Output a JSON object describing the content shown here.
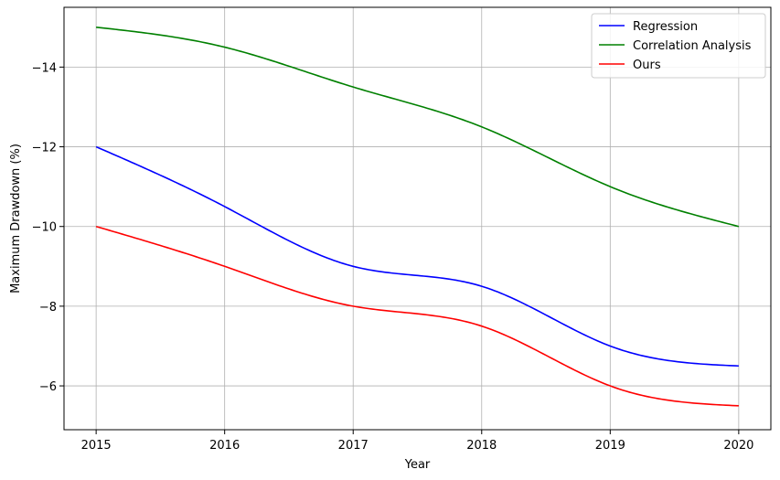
{
  "chart_data": {
    "type": "line",
    "title": "",
    "xlabel": "Year",
    "ylabel": "Maximum Drawdown (%)",
    "x": [
      2015,
      2016,
      2017,
      2018,
      2019,
      2020
    ],
    "x_tick_labels": [
      "2015",
      "2016",
      "2017",
      "2018",
      "2019",
      "2020"
    ],
    "y_ticks": [
      -14,
      -12,
      -10,
      -8,
      -6
    ],
    "y_tick_labels": [
      "−14",
      "−12",
      "−10",
      "−8",
      "−6"
    ],
    "xlim": [
      2014.75,
      2020.25
    ],
    "ylim": [
      -4.9,
      -15.5
    ],
    "y_axis_inverted": true,
    "grid": true,
    "legend_position": "top-right",
    "smoothing": "spline",
    "series": [
      {
        "name": "Regression",
        "color": "#0000ff",
        "values": [
          -12,
          -10.5,
          -9,
          -8.5,
          -7,
          -6.5
        ]
      },
      {
        "name": "Correlation Analysis",
        "color": "#008000",
        "values": [
          -15,
          -14.5,
          -13.5,
          -12.5,
          -11,
          -10
        ]
      },
      {
        "name": "Ours",
        "color": "#ff0000",
        "values": [
          -10,
          -9,
          -8,
          -7.5,
          -6,
          -5.5
        ]
      }
    ]
  }
}
